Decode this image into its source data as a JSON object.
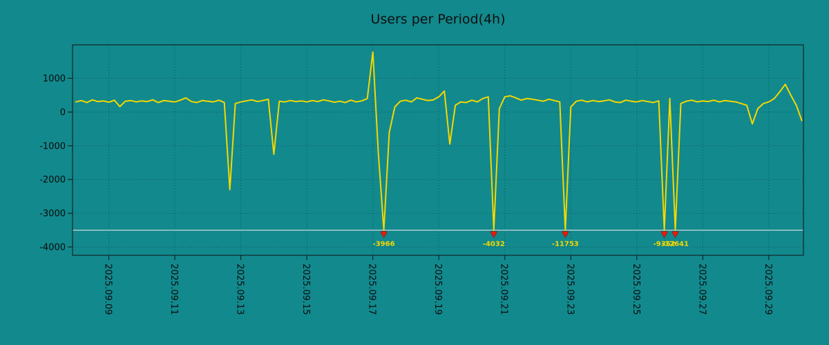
{
  "page": {
    "background": "#12898d"
  },
  "chart_data": {
    "type": "line",
    "title": "Users per Period(4h)",
    "series_name": "users",
    "x_ticks": [
      {
        "day": 1,
        "label": "2025.09.09"
      },
      {
        "day": 3,
        "label": "2025.09.11"
      },
      {
        "day": 5,
        "label": "2025.09.13"
      },
      {
        "day": 7,
        "label": "2025.09.15"
      },
      {
        "day": 9,
        "label": "2025.09.17"
      },
      {
        "day": 11,
        "label": "2025.09.19"
      },
      {
        "day": 13,
        "label": "2025.09.21"
      },
      {
        "day": 15,
        "label": "2025.09.23"
      },
      {
        "day": 17,
        "label": "2025.09.25"
      },
      {
        "day": 19,
        "label": "2025.09.27"
      },
      {
        "day": 21,
        "label": "2025.09.29"
      }
    ],
    "y_ticks": [
      1000,
      0,
      -1000,
      -2000,
      -3000,
      -4000
    ],
    "ylim": [
      -4245,
      1990
    ],
    "xlim_days": [
      -0.1,
      22.05
    ],
    "grid": true,
    "legend": "none",
    "start_day": 0,
    "step_days": 0.1666667,
    "values": [
      300,
      340,
      280,
      360,
      310,
      330,
      290,
      350,
      160,
      320,
      340,
      300,
      330,
      310,
      360,
      280,
      340,
      320,
      300,
      350,
      420,
      310,
      280,
      340,
      320,
      300,
      350,
      280,
      -2300,
      250,
      300,
      330,
      360,
      310,
      340,
      380,
      -1250,
      320,
      300,
      340,
      310,
      330,
      300,
      340,
      310,
      360,
      330,
      290,
      320,
      280,
      350,
      300,
      330,
      400,
      1780,
      -1200,
      -3966,
      -600,
      150,
      320,
      350,
      300,
      420,
      380,
      340,
      360,
      450,
      620,
      -950,
      200,
      300,
      280,
      350,
      300,
      400,
      450,
      -4032,
      100,
      450,
      480,
      420,
      350,
      400,
      380,
      350,
      320,
      380,
      340,
      300,
      -11753,
      150,
      320,
      350,
      300,
      340,
      310,
      330,
      360,
      300,
      280,
      350,
      320,
      300,
      340,
      310,
      280,
      330,
      -9352,
      400,
      -12641,
      250,
      320,
      350,
      300,
      330,
      310,
      350,
      300,
      340,
      320,
      300,
      250,
      200,
      -350,
      100,
      250,
      300,
      400,
      600,
      820,
      500,
      200,
      -250
    ],
    "threshold": -3500,
    "markers": [
      {
        "index": 56,
        "value": -3966,
        "label": "-3966"
      },
      {
        "index": 76,
        "value": -4032,
        "label": "-4032"
      },
      {
        "index": 89,
        "value": -11753,
        "label": "-11753"
      },
      {
        "index": 107,
        "value": -9352,
        "label": "-9352"
      },
      {
        "index": 109,
        "value": -12641,
        "label": "-12641"
      }
    ],
    "colors": {
      "line": "#f5d800",
      "threshold_line": "#dedede",
      "marker": "#ea1c0d",
      "background": "#12898d",
      "axis_text": "#0a0a0a",
      "axis_line": "#111111",
      "grid": "#000000"
    }
  }
}
